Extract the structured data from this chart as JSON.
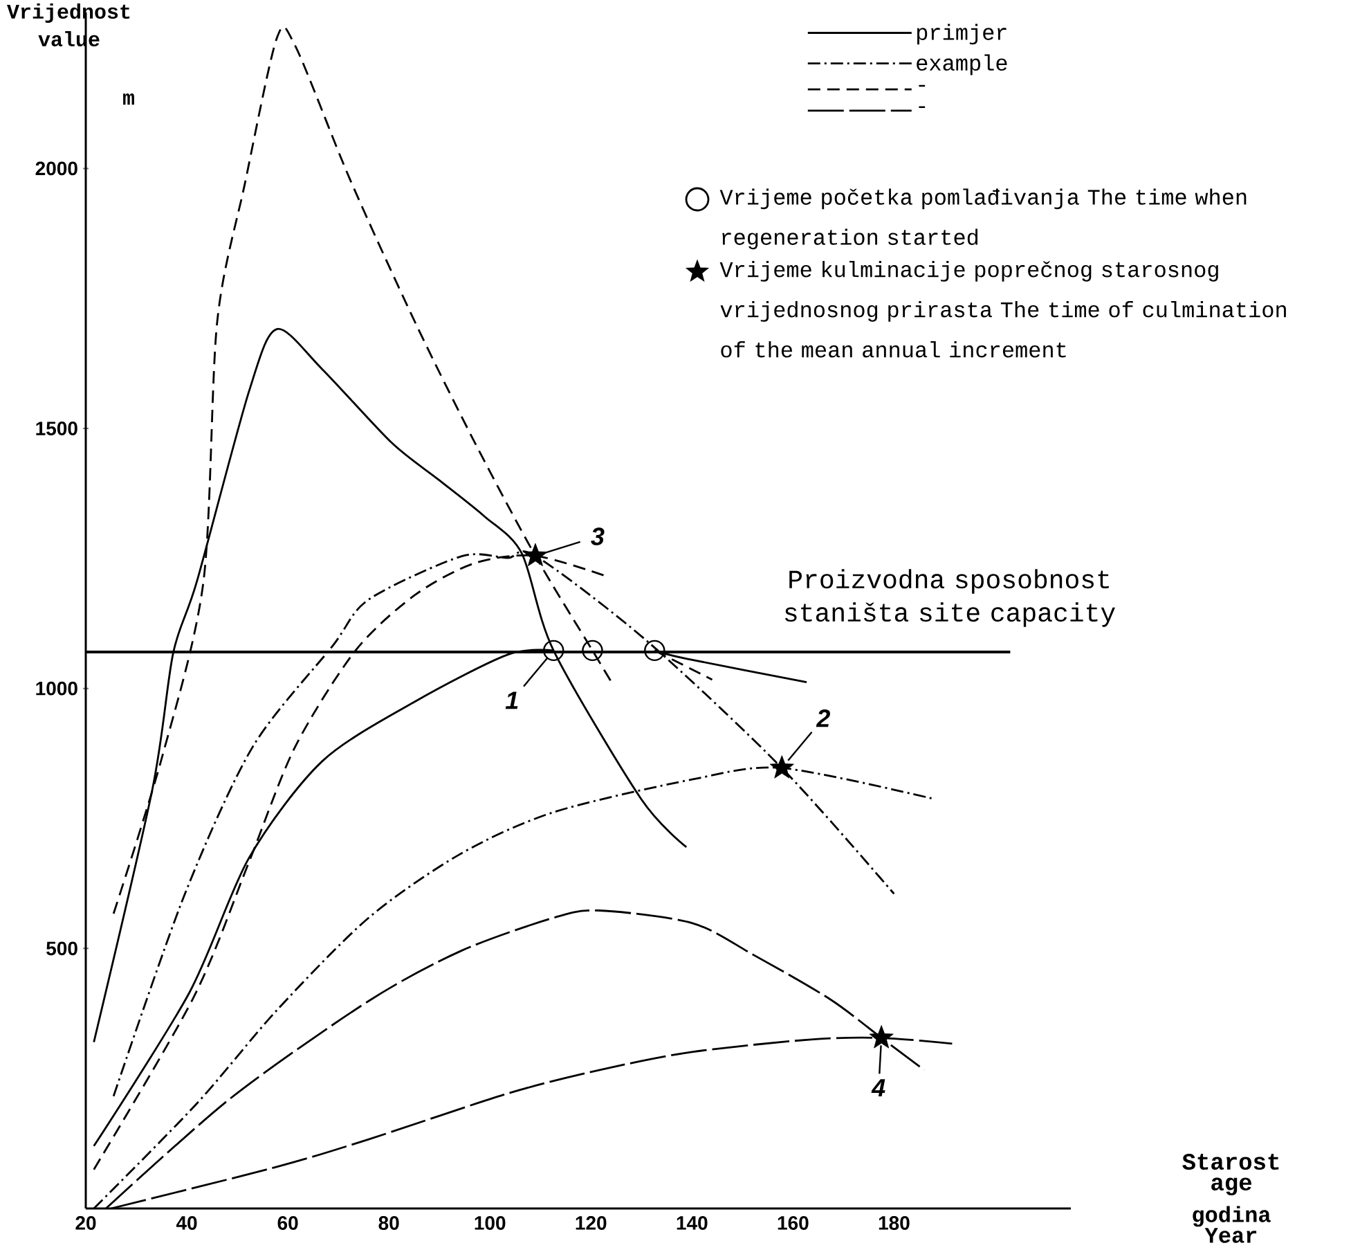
{
  "chart_data": {
    "type": "line",
    "ylabel": "Vrijednost value",
    "xlabel": "Starost age",
    "annotations": [
      "m",
      "godina Year",
      {
        "text": "1",
        "x": 112.6,
        "y": 1073
      },
      {
        "text": "2",
        "x": 157.8,
        "y": 847
      },
      {
        "text": "3",
        "x": 109,
        "y": 1255
      },
      {
        "text": "4",
        "x": 177.5,
        "y": 328
      }
    ],
    "xlim": [
      20,
      215
    ],
    "ylim": [
      0,
      2300
    ],
    "xticks": [
      20,
      40,
      60,
      80,
      100,
      120,
      140,
      160,
      180
    ],
    "yticks": [
      500,
      1000,
      1500,
      2000
    ],
    "legend": "top right",
    "ref_lines": [
      {
        "axis": "y",
        "value": 1070,
        "label": "Proizvodna sposobnost staništa site capacity",
        "color": "#000000"
      }
    ],
    "series": [
      {
        "name": "primjer",
        "line_style": "solid",
        "color": "#000000",
        "x": [
          21.6,
          40.5,
          52.3,
          66.8,
          85.2,
          103.5,
          112.6
        ],
        "values": [
          120,
          415,
          674,
          860,
          975,
          1065,
          1073
        ]
      },
      {
        "name": "example",
        "line_style": "dashdot",
        "color": "#000000",
        "x": [
          25.5,
          39.5,
          53,
          68.8,
          76,
          94.3,
          103.5,
          109,
          131,
          157.8,
          180
        ],
        "values": [
          216,
          602,
          887,
          1081,
          1171,
          1254,
          1251,
          1255,
          1092,
          847,
          605
        ]
      },
      {
        "name": "-",
        "line_style": "dashed",
        "color": "#000000",
        "x": [
          21.6,
          41.4,
          52.3,
          61.4,
          73.4,
          85.2,
          97,
          109,
          123.6
        ],
        "values": [
          75,
          407,
          666,
          887,
          1073,
          1180,
          1241,
          1255,
          1214
        ]
      },
      {
        "name": "-",
        "line_style": "longdash",
        "color": "#000000",
        "x": [
          24,
          48.8,
          76,
          94.2,
          112.6,
          121.6,
          140,
          152.3,
          167.4,
          177.5,
          186
        ],
        "values": [
          0,
          213,
          399,
          495,
          559,
          573,
          549,
          487,
          402,
          328,
          266
        ]
      },
      {
        "name": "Vrijeme početka pomlađivanja The time when regeneration started",
        "type": "scatter",
        "marker": "circle",
        "color": "#000000",
        "x": [
          112.6,
          120.3,
          132.6
        ],
        "values": [
          1073,
          1073,
          1073
        ]
      },
      {
        "name": "Vrijeme kulminacije poprečnog starosnog vrijednosnog prirasta The time of culmination of the mean annual increment",
        "type": "scatter",
        "marker": "star",
        "color": "#000000",
        "x": [
          109,
          157.8,
          177.5
        ],
        "values": [
          1255,
          847,
          328
        ]
      },
      {
        "line_style": "solid",
        "color": "#000000",
        "x": [
          21.6,
          33.2,
          37.3,
          42,
          52.3,
          57.8,
          66.8,
          80.5,
          89.9,
          98.9,
          106.3,
          112.6,
          129.9,
          138.9
        ],
        "values": [
          320,
          807,
          1068,
          1206,
          1571,
          1691,
          1614,
          1473,
          1401,
          1331,
          1260,
          1073,
          788,
          695
        ]
      },
      {
        "line_style": "dashed",
        "color": "#000000",
        "x": [
          25.5,
          35.1,
          43.3,
          46,
          51.5,
          57.8,
          61.4,
          72.3,
          85.2,
          97,
          109,
          120.3,
          124.5
        ],
        "values": [
          567,
          868,
          1206,
          1704,
          1971,
          2250,
          2237,
          1979,
          1704,
          1473,
          1255,
          1073,
          1005
        ]
      },
      {
        "line_style": "dashdot",
        "color": "#000000",
        "x": [
          21.6,
          42,
          57.8,
          76,
          94.2,
          112.6,
          140,
          157.8,
          187.7
        ],
        "values": [
          0,
          202,
          381,
          559,
          682,
          762,
          825,
          847,
          788
        ]
      },
      {
        "line_style": "longdash",
        "color": "#000000",
        "x": [
          25,
          57.8,
          76,
          103.5,
          121.6,
          140,
          163.6,
          177.5,
          191.5
        ],
        "values": [
          0,
          80,
          133,
          221,
          266,
          301,
          325,
          328,
          317
        ]
      },
      {
        "line_style": "solid",
        "color": "#000000",
        "x": [
          132.6,
          139,
          162.7
        ],
        "values": [
          1073,
          1057,
          1012
        ]
      },
      {
        "line_style": "dashed",
        "color": "#000000",
        "x": [
          132.6,
          144
        ],
        "values": [
          1073,
          1017
        ]
      }
    ]
  }
}
